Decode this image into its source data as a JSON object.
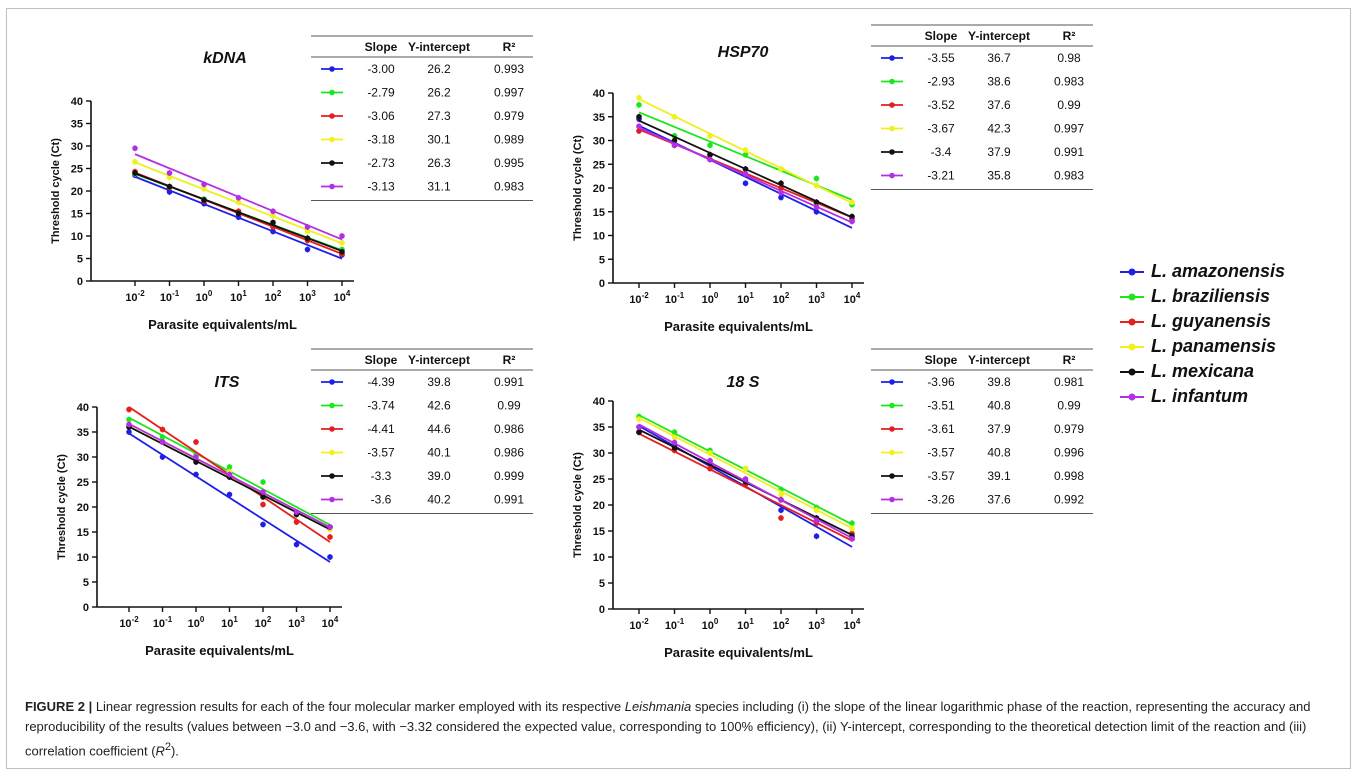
{
  "caption": {
    "label": "FIGURE 2 |",
    "text_before_italic": " Linear regression results for each of the four molecular marker employed with its respective ",
    "italic": "Leishmania",
    "text_after_italic": " species including (i) the slope of the linear logarithmic phase of the reaction, representing the accuracy and reproducibility of the results (values between −3.0 and −3.6, with −3.32 considered the expected value, corresponding to 100% efficiency), (ii) Y-intercept, corresponding to the theoretical detection limit of the reaction and (iii) correlation coefficient (",
    "r2_symbol": "R",
    "r2_sup": "2",
    "text_end": ")."
  },
  "table_headers": [
    "Slope",
    "Y-intercept",
    "R²"
  ],
  "legend": [
    {
      "name": "L. amazonensis",
      "color": "#1f1fe6"
    },
    {
      "name": "L. braziliensis",
      "color": "#1ee61e"
    },
    {
      "name": "L. guyanensis",
      "color": "#e61e1e"
    },
    {
      "name": "L. panamensis",
      "color": "#f0f01e"
    },
    {
      "name": "L. mexicana",
      "color": "#111111"
    },
    {
      "name": "L. infantum",
      "color": "#b42ee6"
    }
  ],
  "chart_data": [
    {
      "type": "line",
      "title": "kDNA",
      "xlabel": "Parasite equivalents/mL",
      "ylabel": "Threshold cycle (Ct)",
      "ylim": [
        0,
        40
      ],
      "yticks": [
        "0",
        "5",
        "10",
        "15",
        "20",
        "25",
        "30",
        "35",
        "40"
      ],
      "x_exponents": [
        "-2",
        "-1",
        "0",
        "1",
        "2",
        "3",
        "4"
      ],
      "x_base": "10",
      "series": [
        {
          "name": "L. amazonensis",
          "values": [
            23.5,
            19.8,
            17.2,
            14.2,
            11.0,
            7.0,
            5.8
          ],
          "table": [
            "-3.00",
            "26.2",
            "0.993"
          ]
        },
        {
          "name": "L. braziliensis",
          "values": [
            23.8,
            21.0,
            18.2,
            15.2,
            12.5,
            9.5,
            7.0
          ],
          "table": [
            "-2.79",
            "26.2",
            "0.997"
          ]
        },
        {
          "name": "L. guyanensis",
          "values": [
            24.3,
            20.8,
            17.8,
            15.5,
            12.0,
            9.0,
            6.0
          ],
          "table": [
            "-3.06",
            "27.3",
            "0.979"
          ]
        },
        {
          "name": "L. panamensis",
          "values": [
            26.5,
            23.0,
            20.5,
            17.5,
            14.5,
            11.0,
            8.5
          ],
          "table": [
            "-3.18",
            "30.1",
            "0.989"
          ]
        },
        {
          "name": "L. mexicana",
          "values": [
            24.0,
            21.0,
            18.0,
            15.0,
            13.0,
            9.5,
            6.5
          ],
          "table": [
            "-2.73",
            "26.3",
            "0.995"
          ]
        },
        {
          "name": "L. infantum",
          "values": [
            29.5,
            24.0,
            21.5,
            18.5,
            15.5,
            12.0,
            10.0
          ],
          "table": [
            "-3.13",
            "31.1",
            "0.983"
          ]
        }
      ]
    },
    {
      "type": "line",
      "title": "HSP70",
      "xlabel": "Parasite equivalents/mL",
      "ylabel": "Threshold cycle (Ct)",
      "ylim": [
        0,
        40
      ],
      "yticks": [
        "0",
        "5",
        "10",
        "15",
        "20",
        "25",
        "30",
        "35",
        "40"
      ],
      "x_exponents": [
        "-2",
        "-1",
        "0",
        "1",
        "2",
        "3",
        "4"
      ],
      "x_base": "10",
      "series": [
        {
          "name": "L. amazonensis",
          "values": [
            34.5,
            29.0,
            26.0,
            21.0,
            18.0,
            15.0,
            13.0
          ],
          "table": [
            "-3.55",
            "36.7",
            "0.98"
          ]
        },
        {
          "name": "L. braziliensis",
          "values": [
            37.5,
            31.0,
            29.0,
            27.0,
            24.0,
            22.0,
            16.5
          ],
          "table": [
            "-2.93",
            "38.6",
            "0.983"
          ]
        },
        {
          "name": "L. guyanensis",
          "values": [
            32.0,
            29.0,
            27.0,
            23.0,
            20.0,
            17.0,
            13.5
          ],
          "table": [
            "-3.52",
            "37.6",
            "0.99"
          ]
        },
        {
          "name": "L. panamensis",
          "values": [
            39.0,
            35.0,
            31.0,
            28.0,
            24.0,
            20.5,
            17.0
          ],
          "table": [
            "-3.67",
            "42.3",
            "0.997"
          ]
        },
        {
          "name": "L. mexicana",
          "values": [
            35.0,
            30.0,
            27.0,
            24.0,
            21.0,
            17.0,
            14.0
          ],
          "table": [
            "-3.4",
            "37.9",
            "0.991"
          ]
        },
        {
          "name": "L. infantum",
          "values": [
            33.0,
            29.0,
            26.0,
            23.0,
            19.0,
            16.0,
            13.0
          ],
          "table": [
            "-3.21",
            "35.8",
            "0.983"
          ]
        }
      ]
    },
    {
      "type": "line",
      "title": "ITS",
      "xlabel": "Parasite equivalents/mL",
      "ylabel": "Threshold cycle (Ct)",
      "ylim": [
        0,
        40
      ],
      "yticks": [
        "0",
        "5",
        "10",
        "15",
        "20",
        "25",
        "30",
        "35",
        "40"
      ],
      "x_exponents": [
        "-2",
        "-1",
        "0",
        "1",
        "2",
        "3",
        "4"
      ],
      "x_base": "10",
      "series": [
        {
          "name": "L. amazonensis",
          "values": [
            35.0,
            30.0,
            26.5,
            22.5,
            16.5,
            12.5,
            10.0
          ],
          "table": [
            "-4.39",
            "39.8",
            "0.991"
          ]
        },
        {
          "name": "L. braziliensis",
          "values": [
            37.5,
            34.0,
            30.5,
            28.0,
            25.0,
            19.0,
            16.0
          ],
          "table": [
            "-3.74",
            "42.6",
            "0.99"
          ]
        },
        {
          "name": "L. guyanensis",
          "values": [
            39.5,
            35.5,
            33.0,
            26.0,
            20.5,
            17.0,
            14.0
          ],
          "table": [
            "-4.41",
            "44.6",
            "0.986"
          ]
        },
        {
          "name": "L. panamensis",
          "values": [
            36.0,
            33.0,
            30.0,
            27.0,
            23.0,
            19.0,
            15.5
          ],
          "table": [
            "-3.57",
            "40.1",
            "0.986"
          ]
        },
        {
          "name": "L. mexicana",
          "values": [
            36.0,
            33.0,
            29.0,
            26.0,
            22.0,
            18.5,
            16.0
          ],
          "table": [
            "-3.3",
            "39.0",
            "0.999"
          ]
        },
        {
          "name": "L. infantum",
          "values": [
            36.5,
            33.0,
            30.0,
            26.5,
            23.0,
            19.0,
            16.0
          ],
          "table": [
            "-3.6",
            "40.2",
            "0.991"
          ]
        }
      ]
    },
    {
      "type": "line",
      "title": "18 S",
      "xlabel": "Parasite equivalents/mL",
      "ylabel": "Threshold cycle (Ct)",
      "ylim": [
        0,
        40
      ],
      "yticks": [
        "0",
        "5",
        "10",
        "15",
        "20",
        "25",
        "30",
        "35",
        "40"
      ],
      "x_exponents": [
        "-2",
        "-1",
        "0",
        "1",
        "2",
        "3",
        "4"
      ],
      "x_base": "10",
      "series": [
        {
          "name": "L. amazonensis",
          "values": [
            35.0,
            31.5,
            28.0,
            24.0,
            19.0,
            14.0,
            13.5
          ],
          "table": [
            "-3.96",
            "39.8",
            "0.981"
          ]
        },
        {
          "name": "L. braziliensis",
          "values": [
            37.0,
            34.0,
            30.5,
            27.0,
            23.0,
            19.5,
            16.5
          ],
          "table": [
            "-3.51",
            "40.8",
            "0.99"
          ]
        },
        {
          "name": "L. guyanensis",
          "values": [
            34.0,
            30.5,
            27.0,
            24.0,
            17.5,
            16.5,
            14.5
          ],
          "table": [
            "-3.61",
            "37.9",
            "0.979"
          ]
        },
        {
          "name": "L. panamensis",
          "values": [
            36.5,
            33.0,
            30.0,
            27.0,
            22.0,
            19.0,
            15.5
          ],
          "table": [
            "-3.57",
            "40.8",
            "0.996"
          ]
        },
        {
          "name": "L. mexicana",
          "values": [
            34.0,
            31.0,
            28.5,
            24.5,
            21.0,
            17.5,
            14.0
          ],
          "table": [
            "-3.57",
            "39.1",
            "0.998"
          ]
        },
        {
          "name": "L. infantum",
          "values": [
            35.0,
            32.0,
            28.5,
            25.0,
            21.0,
            17.0,
            13.5
          ],
          "table": [
            "-3.26",
            "37.6",
            "0.992"
          ]
        }
      ]
    }
  ]
}
